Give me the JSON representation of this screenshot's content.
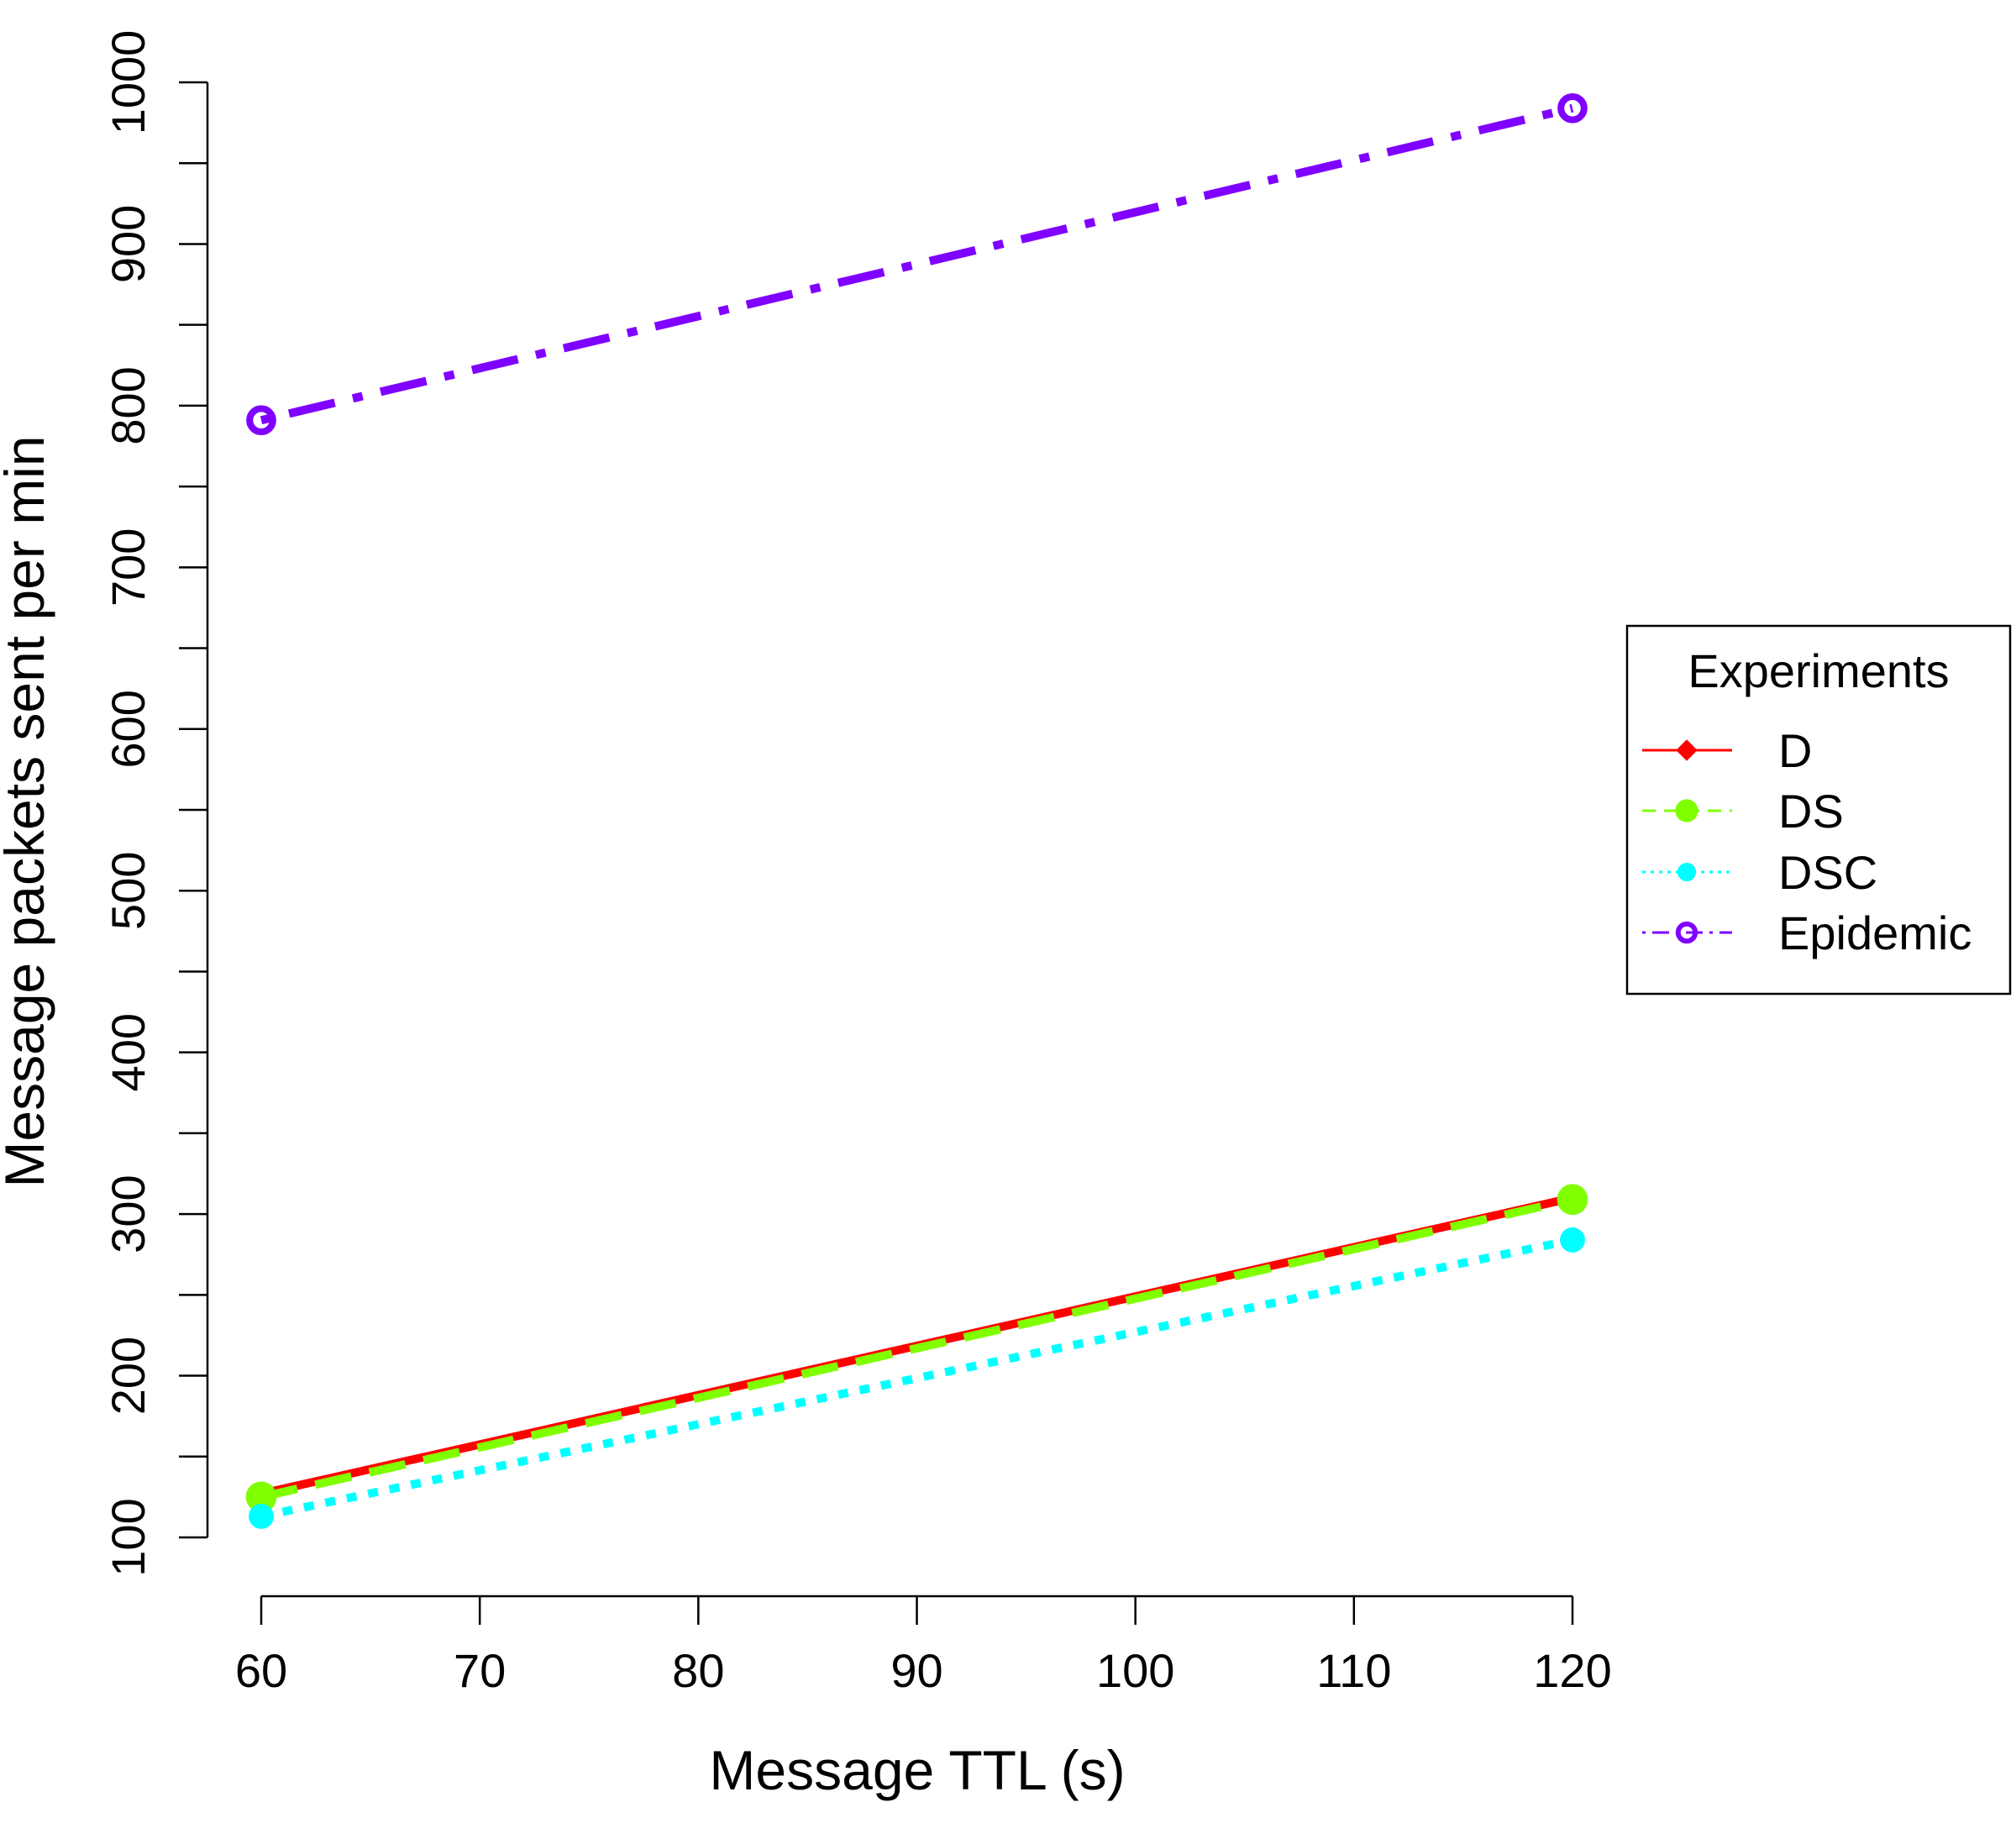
{
  "chart_data": {
    "type": "line",
    "title": "",
    "xlabel": "Message TTL (s)",
    "ylabel": "Message packets sent per min",
    "x": [
      60,
      120
    ],
    "xlim": [
      60,
      120
    ],
    "ylim": [
      100,
      1000
    ],
    "xticks": [
      60,
      70,
      80,
      90,
      100,
      110,
      120
    ],
    "yticks": [
      100,
      200,
      300,
      400,
      500,
      600,
      700,
      800,
      900,
      1000
    ],
    "grid": false,
    "legend": {
      "title": "Experiments",
      "placement": "right"
    },
    "series": [
      {
        "name": "D",
        "values": [
          127,
          310
        ],
        "color": "#ff0000",
        "dash": "solid",
        "marker": "diamond"
      },
      {
        "name": "DS",
        "values": [
          125,
          309
        ],
        "color": "#80ff00",
        "dash": "dashed",
        "marker": "filled-circle"
      },
      {
        "name": "DSC",
        "values": [
          113,
          284
        ],
        "color": "#00ffff",
        "dash": "dotted",
        "marker": "filled-circle-small"
      },
      {
        "name": "Epidemic",
        "values": [
          791,
          984
        ],
        "color": "#8000ff",
        "dash": "dotdash",
        "marker": "open-circle"
      }
    ]
  }
}
